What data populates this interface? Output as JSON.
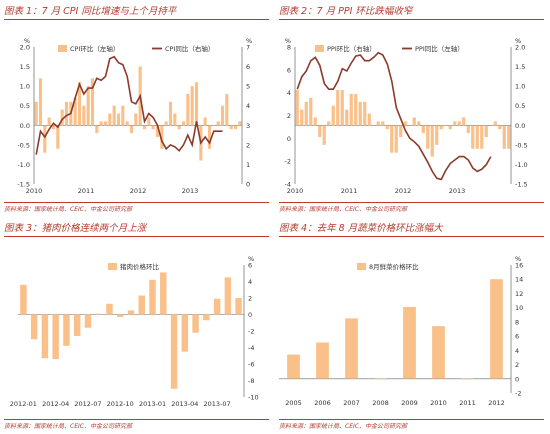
{
  "colors": {
    "bar": "#f9c08a",
    "line": "#8b3a2b",
    "title": "#b23b2e",
    "rule": "#c0392b",
    "axis": "#666666"
  },
  "panels": [
    {
      "title": "图表 1：7 月 CPI 同比增速与上个月持平",
      "source": "资料来源：国家统计局、CEIC、中金公司研究部"
    },
    {
      "title": "图表 2：7 月 PPI 环比跌幅收窄",
      "source": "资料来源：国家统计局、CEIC、中金公司研究部"
    },
    {
      "title": "图表 3：猪肉价格连续两个月上涨",
      "source": "资料来源：国家统计局、CEIC、中金公司研究部"
    },
    {
      "title": "图表 4：去年 8 月蔬菜价格环比涨幅大",
      "source": "资料来源：国家统计局、CEIC、中金公司研究部"
    }
  ],
  "chart_data": [
    {
      "type": "bar+line",
      "legend": {
        "bar": "CPI环比（左轴）",
        "line": "CPI同比（右轴）"
      },
      "yunit_left": "%",
      "yunit_right": "%",
      "ylim_left": [
        -1.5,
        2.0
      ],
      "yticks_left": [
        "2.0",
        "1.5",
        "1.0",
        "0.5",
        "0.0",
        "-0.5",
        "-1.0",
        "-1.5"
      ],
      "ylim_right": [
        0,
        7
      ],
      "yticks_right": [
        "7",
        "6",
        "5",
        "4",
        "3",
        "2",
        "1",
        "0"
      ],
      "xticks": [
        "2010",
        "2011",
        "2012",
        "2013"
      ],
      "x_start": "2010-01",
      "bar_values": [
        0.6,
        1.2,
        -0.7,
        0.2,
        -0.1,
        -0.6,
        0.4,
        0.6,
        0.6,
        0.7,
        1.1,
        0.5,
        1.0,
        1.2,
        -0.2,
        0.1,
        0.1,
        0.3,
        0.5,
        0.3,
        0.5,
        0.1,
        -0.2,
        0.3,
        1.5,
        -0.1,
        0.2,
        -0.1,
        -0.3,
        -0.6,
        0.1,
        0.6,
        0.3,
        -0.1,
        0.1,
        0.8,
        1.0,
        1.1,
        -0.9,
        0.2,
        -0.6,
        0.0,
        0.1,
        0.5,
        0.8,
        -0.1,
        -0.1,
        0.1
      ],
      "line_values": [
        1.5,
        2.7,
        2.4,
        2.8,
        3.1,
        2.9,
        3.3,
        3.5,
        3.6,
        4.4,
        5.1,
        4.6,
        4.9,
        4.9,
        5.4,
        5.3,
        5.5,
        6.4,
        6.5,
        6.2,
        6.1,
        5.5,
        4.2,
        4.1,
        4.5,
        3.2,
        3.6,
        3.4,
        3.0,
        2.2,
        1.8,
        2.0,
        1.9,
        1.7,
        2.0,
        2.5,
        2.0,
        3.2,
        2.1,
        2.4,
        2.1,
        2.7,
        2.7,
        2.7
      ]
    },
    {
      "type": "bar+line",
      "legend": {
        "bar": "PPI环比（右轴）",
        "line": "PPI同比（左轴）"
      },
      "yunit_left": "%",
      "yunit_right": "%",
      "ylim_left": [
        -4,
        8
      ],
      "yticks_left": [
        "8",
        "6",
        "4",
        "2",
        "0",
        "-2",
        "-4"
      ],
      "ylim_right": [
        -1.5,
        2.0
      ],
      "yticks_right": [
        "2.0",
        "1.5",
        "1.0",
        "0.5",
        "0.0",
        "-0.5",
        "-1.0",
        "-1.5"
      ],
      "xticks": [
        "2010",
        "2011",
        "2012",
        "2013"
      ],
      "x_start": "2010-01",
      "bar_values": [
        0.9,
        0.4,
        0.6,
        0.7,
        0.2,
        -0.3,
        -0.5,
        0.1,
        0.5,
        0.9,
        0.9,
        0.4,
        0.8,
        0.8,
        0.6,
        0.6,
        0.3,
        0.0,
        0.1,
        0.1,
        -0.1,
        -0.7,
        -0.7,
        -0.3,
        0.1,
        0.0,
        0.2,
        0.1,
        -0.2,
        -0.6,
        -0.8,
        -0.5,
        -0.1,
        0.0,
        -0.1,
        0.1,
        0.1,
        0.2,
        -0.2,
        -0.6,
        -0.6,
        -0.6,
        -0.3,
        0.0,
        0.1,
        -0.1,
        -0.6,
        -0.6
      ],
      "line_values": [
        4.3,
        5.4,
        5.9,
        6.8,
        7.1,
        6.4,
        4.8,
        4.3,
        4.3,
        5.0,
        6.1,
        5.9,
        6.6,
        7.2,
        7.3,
        6.8,
        6.8,
        7.1,
        7.5,
        7.3,
        6.5,
        5.0,
        2.7,
        1.7,
        0.7,
        0.0,
        -0.3,
        -0.7,
        -1.4,
        -2.1,
        -2.9,
        -3.5,
        -3.6,
        -2.8,
        -2.2,
        -1.9,
        -1.6,
        -1.6,
        -1.9,
        -2.6,
        -2.9,
        -2.7,
        -2.3,
        -1.6
      ]
    },
    {
      "type": "bar",
      "legend": {
        "bar": "猪肉价格环比"
      },
      "yunit_right": "%",
      "ylim_right": [
        -10,
        6
      ],
      "yticks_right": [
        "6",
        "4",
        "2",
        "0",
        "-2",
        "-4",
        "-6",
        "-8",
        "-10"
      ],
      "xticks": [
        "2012-01",
        "2012-04",
        "2012-07",
        "2012-10",
        "2013-01",
        "2013-04",
        "2013-07"
      ],
      "bar_values": [
        3.6,
        -3.0,
        -5.3,
        -5.4,
        -3.8,
        -2.6,
        -1.6,
        0.1,
        1.3,
        -0.3,
        0.5,
        2.3,
        4.2,
        5.1,
        -9.0,
        -4.5,
        -2.2,
        -0.7,
        1.9,
        4.5,
        2.0
      ]
    },
    {
      "type": "bar",
      "legend": {
        "bar": "8月鲜菜价格环比"
      },
      "yunit_right": "%",
      "ylim_right": [
        -2,
        16
      ],
      "yticks_right": [
        "16",
        "14",
        "12",
        "10",
        "8",
        "6",
        "4",
        "2",
        "0",
        "-2"
      ],
      "categories": [
        "2005",
        "2006",
        "2007",
        "2008",
        "2009",
        "2010",
        "2011",
        "2012"
      ],
      "bar_values": [
        3.4,
        5.1,
        8.5,
        0.0,
        10.1,
        7.4,
        -0.1,
        14.0
      ]
    }
  ]
}
